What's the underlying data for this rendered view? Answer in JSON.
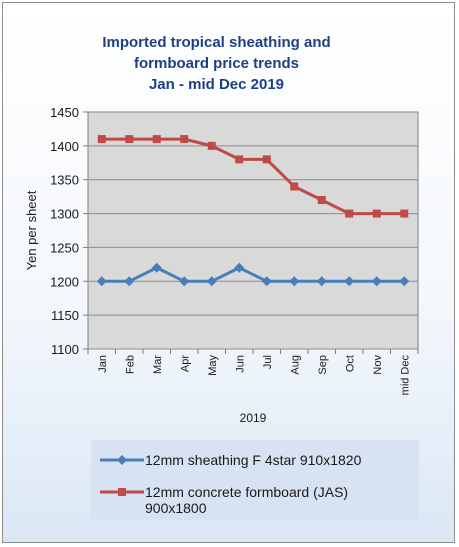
{
  "chart_data": {
    "type": "line",
    "title_lines": [
      "Imported tropical sheathing and",
      "formboard price trends",
      "Jan - mid Dec 2019"
    ],
    "xlabel": "2019",
    "ylabel": "Yen per sheet",
    "categories": [
      "Jan",
      "Feb",
      "Mar",
      "Apr",
      "May",
      "Jun",
      "Jul",
      "Aug",
      "Sep",
      "Oct",
      "Nov",
      "mid Dec"
    ],
    "ylim": [
      1100,
      1450
    ],
    "yticks": [
      1100,
      1150,
      1200,
      1250,
      1300,
      1350,
      1400,
      1450
    ],
    "grid": true,
    "legend_position": "bottom",
    "series": [
      {
        "name": "12mm sheathing F 4star 910x1820",
        "legend_lines": [
          "12mm sheathing F 4star 910x1820"
        ],
        "color": "#4a7ebb",
        "marker": "diamond",
        "values": [
          1200,
          1200,
          1220,
          1200,
          1200,
          1220,
          1200,
          1200,
          1200,
          1200,
          1200,
          1200
        ]
      },
      {
        "name": "12mm concrete formboard (JAS) 900x1800",
        "legend_lines": [
          "12mm concrete formboard (JAS)",
          "900x1800"
        ],
        "color": "#be4b48",
        "marker": "square",
        "values": [
          1410,
          1410,
          1410,
          1410,
          1400,
          1380,
          1380,
          1340,
          1320,
          1300,
          1300,
          1300
        ]
      }
    ],
    "plot_background": "#d9d9d9",
    "grid_color": "#8c8c8c"
  }
}
